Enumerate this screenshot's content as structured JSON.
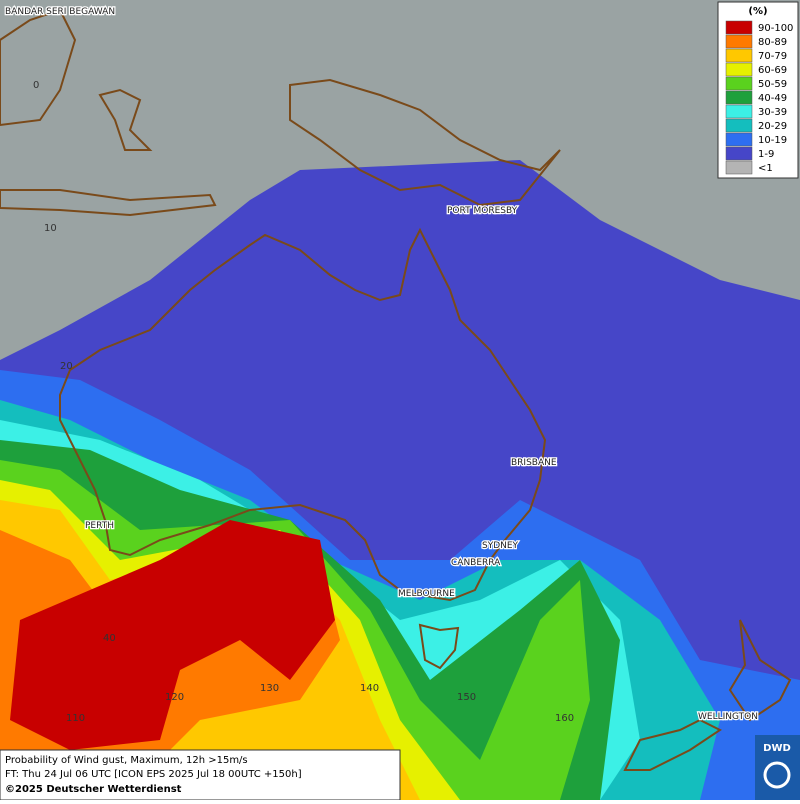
{
  "map": {
    "cities": [
      {
        "label": "BANDAR SERI BEGAWAN"
      },
      {
        "label": "PORT MORESBY"
      },
      {
        "label": "BRISBANE"
      },
      {
        "label": "PERTH"
      },
      {
        "label": "SYDNEY"
      },
      {
        "label": "CANBERRA"
      },
      {
        "label": "MELBOURNE"
      },
      {
        "label": "WELLINGTON"
      }
    ],
    "grid_labels": [
      "0",
      "10",
      "20",
      "40",
      "110",
      "120",
      "130",
      "140",
      "150",
      "160"
    ],
    "legend": {
      "title": "(%)",
      "items": [
        {
          "label": "90-100",
          "color": "#c80000"
        },
        {
          "label": "80-89",
          "color": "#ff7a00"
        },
        {
          "label": "70-79",
          "color": "#ffc800"
        },
        {
          "label": "60-69",
          "color": "#e6f000"
        },
        {
          "label": "50-59",
          "color": "#5ad21e"
        },
        {
          "label": "40-49",
          "color": "#1ea03c"
        },
        {
          "label": "30-39",
          "color": "#3cf0e6"
        },
        {
          "label": "20-29",
          "color": "#14bebe"
        },
        {
          "label": "10-19",
          "color": "#2d6ef0"
        },
        {
          "label": "1-9",
          "color": "#4646c8"
        },
        {
          "label": "<1",
          "color": "#b4b4b4"
        }
      ]
    },
    "footer": {
      "line1": "Probability of Wind gust, Maximum, 12h >15m/s",
      "line2": "FT: Thu 24 Jul 06 UTC [ICON EPS 2025 Jul 18 00UTC +150h]",
      "line3": "©2025 Deutscher Wetterdienst"
    },
    "logo": "DWD"
  }
}
